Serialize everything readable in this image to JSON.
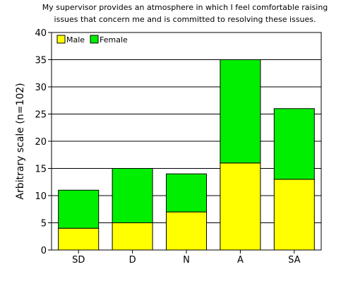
{
  "chart_data": {
    "type": "bar",
    "stacked": true,
    "title": [
      "My supervisor provides an atmosphere in which I feel comfortable raising",
      "issues that concern me and is committed to resolving these issues."
    ],
    "xlabel": "",
    "ylabel": "Arbitrary scale (n=102)",
    "ylim": [
      0,
      40
    ],
    "yticks": [
      "0",
      "5",
      "10",
      "15",
      "20",
      "25",
      "30",
      "35",
      "40"
    ],
    "categories": [
      "SD",
      "D",
      "N",
      "A",
      "SA"
    ],
    "series": [
      {
        "name": "Male",
        "values": [
          4,
          5,
          7,
          16,
          13
        ],
        "color": "#ffff00"
      },
      {
        "name": "Female",
        "values": [
          7,
          10,
          7,
          19,
          13
        ],
        "color": "#00ee00"
      }
    ],
    "grid": "horizontal",
    "legend": "top-left"
  }
}
